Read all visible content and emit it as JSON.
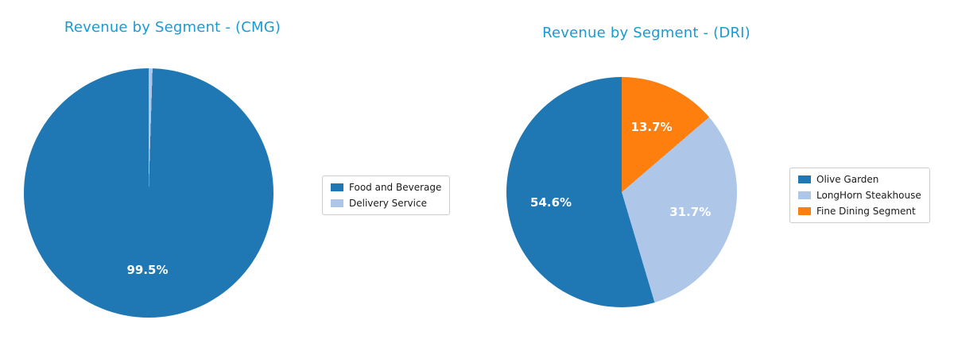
{
  "page": {
    "background": "#ffffff"
  },
  "styles": {
    "title_color": "#1a9ad2",
    "pct_label_color": "#ffffff",
    "legend_border_color": "#cccccc",
    "legend_text_color": "#1a1a1a"
  },
  "chart_data": [
    {
      "type": "pie",
      "title": "Revenue by Segment - (CMG)",
      "start_angle_deg": 90,
      "direction": "counterclockwise",
      "legend_position": "right of chart",
      "grid": false,
      "slices": [
        {
          "label": "Food and Beverage",
          "value": 99.5,
          "pct_label": "99.5%",
          "color": "#1f77b4"
        },
        {
          "label": "Delivery Service",
          "value": 0.5,
          "pct_label": "",
          "color": "#aec7e8"
        }
      ]
    },
    {
      "type": "pie",
      "title": "Revenue by Segment - (DRI)",
      "start_angle_deg": 90,
      "direction": "counterclockwise",
      "legend_position": "right of chart",
      "grid": false,
      "slices": [
        {
          "label": "Olive Garden",
          "value": 54.6,
          "pct_label": "54.6%",
          "color": "#1f77b4"
        },
        {
          "label": "LongHorn Steakhouse",
          "value": 31.7,
          "pct_label": "31.7%",
          "color": "#aec7e8"
        },
        {
          "label": "Fine Dining Segment",
          "value": 13.7,
          "pct_label": "13.7%",
          "color": "#ff7f0e"
        }
      ]
    }
  ]
}
